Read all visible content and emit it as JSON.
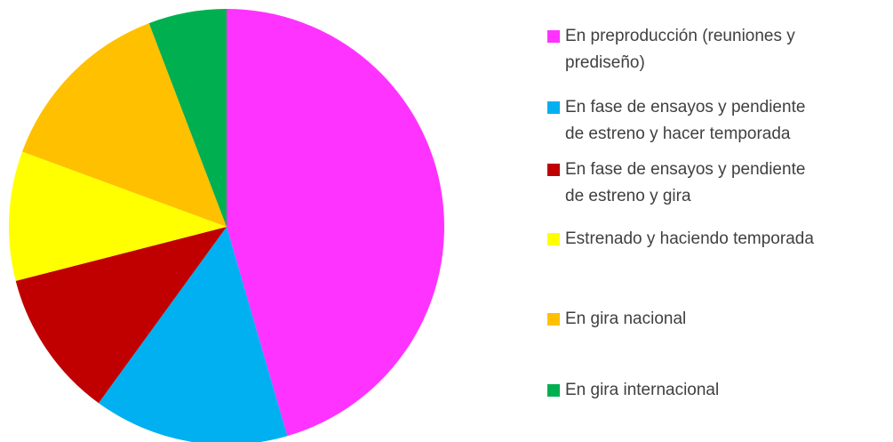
{
  "chart_data": {
    "type": "pie",
    "categories": [
      "En preproducción (reuniones y prediseño)",
      "En fase de ensayos y pendiente de estreno y hacer temporada",
      "En fase de ensayos y pendiente de estreno y gira",
      "Estrenado y haciendo temporada",
      "En gira nacional",
      "En gira internacional"
    ],
    "values": [
      45.5,
      14.5,
      11,
      9.6,
      13.6,
      5.8
    ],
    "colors": [
      "#ff33ff",
      "#00b0f0",
      "#c00000",
      "#ffff00",
      "#ffc000",
      "#00b050"
    ],
    "legend": "right"
  }
}
